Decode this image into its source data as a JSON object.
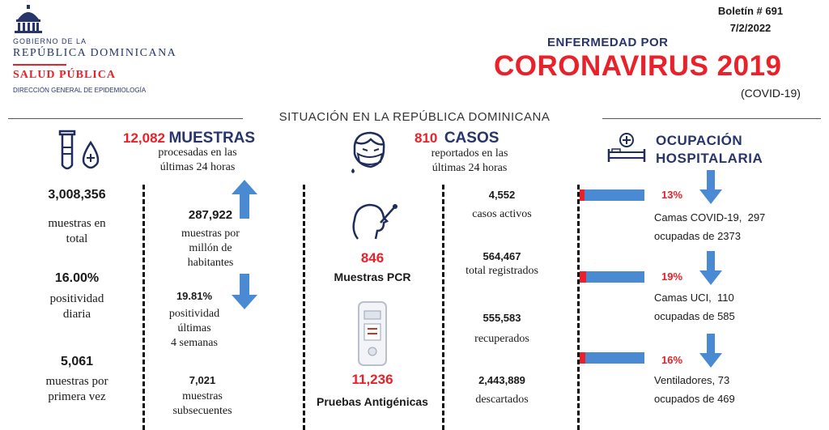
{
  "header": {
    "bulletin": "Boletín # 691",
    "date": "7/2/2022",
    "gov_line1": "GOBIERNO DE LA",
    "gov_line2": "REPÚBLICA DOMINICANA",
    "ministry": "SALUD PÚBLICA",
    "department": "DIRECCIÓN GENERAL DE EPIDEMIOLOGÍA",
    "title_small": "ENFERMEDAD POR",
    "title_big": "CORONAVIRUS 2019",
    "title_abbr": "(COVID-19)",
    "subtitle": "SITUACIÓN EN LA REPÚBLICA DOMINICANA"
  },
  "muestras": {
    "count": "12,082",
    "label": "MUESTRAS",
    "desc1": "procesadas en las",
    "desc2": "últimas 24 horas",
    "total_value": "3,008,356",
    "total_l1": "muestras en",
    "total_l2": "total",
    "pos_daily_value": "16.00%",
    "pos_daily_l1": "positividad",
    "pos_daily_l2": "diaria",
    "first_value": "5,061",
    "first_l1": "muestras por",
    "first_l2": "primera vez",
    "per_million_value": "287,922",
    "per_million_l1": "muestras por",
    "per_million_l2": "millón de",
    "per_million_l3": "habitantes",
    "pos4w_value": "19.81%",
    "pos4w_l1": "positividad",
    "pos4w_l2": "últimas",
    "pos4w_l3": "4 semanas",
    "subsequent_value": "7,021",
    "subsequent_l1": "muestras",
    "subsequent_l2": "subsecuentes"
  },
  "pruebas": {
    "pcr_value": "846",
    "pcr_label": "Muestras PCR",
    "antigen_value": "11,236",
    "antigen_label": "Pruebas Antigénicas"
  },
  "casos": {
    "count": "810",
    "label": "CASOS",
    "desc1": "reportados en las",
    "desc2": "últimas 24 horas",
    "active_value": "4,552",
    "active_label": "casos activos",
    "total_value": "564,467",
    "total_label": "total registrados",
    "recovered_value": "555,583",
    "recovered_label": "recuperados",
    "discarded_value": "2,443,889",
    "discarded_label": "descartados"
  },
  "ocupacion": {
    "title1": "OCUPACIÓN",
    "title2": "HOSPITALARIA",
    "items": [
      {
        "pct": "13%",
        "ratio": 0.13,
        "l1": "Camas COVID-19,  297",
        "l2": "ocupadas de 2373"
      },
      {
        "pct": "19%",
        "ratio": 0.19,
        "l1": "Camas UCI,  110",
        "l2": "ocupadas de 585"
      },
      {
        "pct": "16%",
        "ratio": 0.16,
        "l1": "Ventiladores, 73",
        "l2": "ocupados de 469"
      }
    ]
  },
  "colors": {
    "navy": "#27356b",
    "red": "#e8212a",
    "blue": "#4a8ad3"
  }
}
